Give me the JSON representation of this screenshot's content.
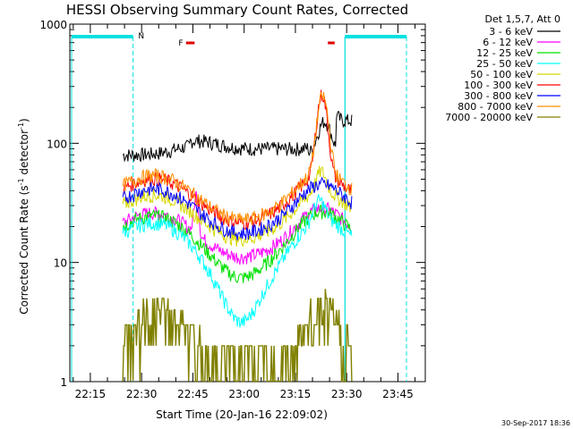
{
  "chart_data": {
    "type": "line",
    "title": "HESSI Observing Summary Count Rates, Corrected",
    "xlabel": "Start Time (20-Jan-16 22:09:02)",
    "ylabel_main": "Corrected Count Rate (s",
    "ylabel_sup1": "-1",
    "ylabel_mid": " detector",
    "ylabel_sup2": "-1",
    "ylabel_end": ")",
    "ylog": true,
    "ylim": [
      1,
      1000
    ],
    "xlim_minutes_after_2209": [
      0,
      104
    ],
    "y_ticks": [
      {
        "value": 1,
        "label": "1"
      },
      {
        "value": 10,
        "label": "10"
      },
      {
        "value": 100,
        "label": "100"
      },
      {
        "value": 1000,
        "label": "1000"
      }
    ],
    "x_ticks": [
      {
        "minute": 6,
        "label": "22:15"
      },
      {
        "minute": 21,
        "label": "22:30"
      },
      {
        "minute": 36,
        "label": "22:45"
      },
      {
        "minute": 51,
        "label": "23:00"
      },
      {
        "minute": 66,
        "label": "23:15"
      },
      {
        "minute": 81,
        "label": "23:30"
      },
      {
        "minute": 96,
        "label": "23:45"
      }
    ],
    "legend_header": "Det 1,5,7, Att 0",
    "series": [
      {
        "name": "3 - 6 keV",
        "color": "#000000"
      },
      {
        "name": "6 - 12 keV",
        "color": "#ff00ff"
      },
      {
        "name": "12 - 25 keV",
        "color": "#00e000"
      },
      {
        "name": "25 - 50 keV",
        "color": "#00ffff"
      },
      {
        "name": "50 - 100 keV",
        "color": "#d8d800"
      },
      {
        "name": "100 - 300 keV",
        "color": "#ff0000"
      },
      {
        "name": "300 - 800 keV",
        "color": "#0000ff"
      },
      {
        "name": "800 - 7000 keV",
        "color": "#ff8c00"
      },
      {
        "name": "7000 - 20000 keV",
        "color": "#808000"
      }
    ],
    "annotations": {
      "night_label": "N",
      "flare_label": "F",
      "night_color": "#00e0e0",
      "flare_color": "#e00000"
    },
    "footer": "30-Sep-2017 18:36"
  }
}
